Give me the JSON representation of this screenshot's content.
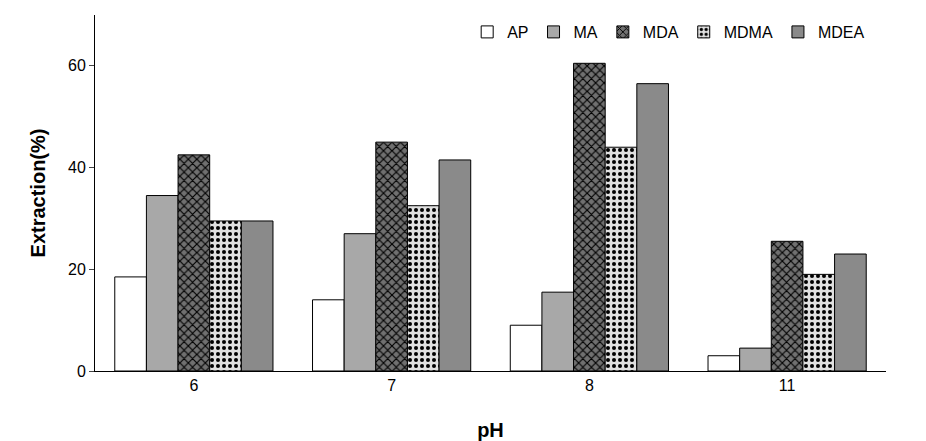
{
  "chart_data": {
    "type": "bar",
    "x_label": "pH",
    "y_label": "Extraction(%)",
    "categories": [
      "6",
      "7",
      "8",
      "11"
    ],
    "series": [
      {
        "name": "AP",
        "color": "#ffffff",
        "marker": "none",
        "values": [
          18.5,
          14,
          9,
          3
        ]
      },
      {
        "name": "MA",
        "color": "#a8a8a8",
        "marker": "none",
        "values": [
          34.5,
          27,
          15.5,
          4.5
        ]
      },
      {
        "name": "MDA",
        "color": "#707070",
        "marker": "crosshatch",
        "values": [
          42.5,
          45,
          60.5,
          25.5
        ]
      },
      {
        "name": "MDMA",
        "color": "#e0e0e0",
        "marker": "dots",
        "values": [
          29.5,
          32.5,
          44,
          19
        ]
      },
      {
        "name": "MDEA",
        "color": "#8a8a8a",
        "marker": "none",
        "values": [
          29.5,
          41.5,
          56.5,
          23
        ]
      }
    ],
    "ylim": [
      0,
      70
    ],
    "yticks": [
      0,
      20,
      40,
      60
    ],
    "grid": false,
    "legend": "top-right"
  }
}
